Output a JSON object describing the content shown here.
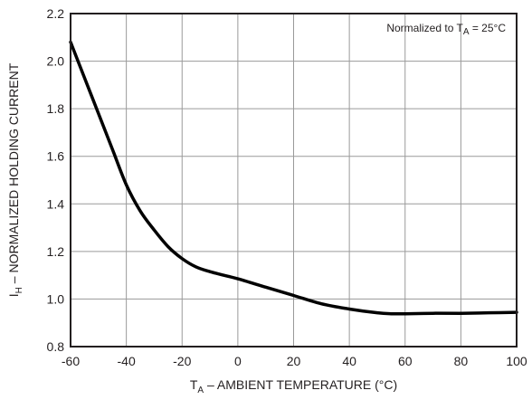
{
  "chart_data": {
    "type": "line",
    "xlabel": {
      "main": "T",
      "sub": "A",
      "rest": " – AMBIENT TEMPERATURE (°C)"
    },
    "ylabel": {
      "main": "I",
      "sub": "H",
      "rest": " – NORMALIZED HOLDING CURRENT"
    },
    "annotation": {
      "prefix": "Normalized to T",
      "sub": "A",
      "suffix": " = 25°C"
    },
    "xlim": [
      -60,
      100
    ],
    "ylim": [
      0.8,
      2.2
    ],
    "x_ticks": [
      "-60",
      "-40",
      "-20",
      "0",
      "20",
      "40",
      "60",
      "80",
      "100"
    ],
    "y_ticks": [
      "0.8",
      "1.0",
      "1.2",
      "1.4",
      "1.6",
      "1.8",
      "2.0",
      "2.2"
    ],
    "grid": true,
    "series": [
      {
        "x": [
          -60,
          -55,
          -50,
          -45,
          -40,
          -35,
          -30,
          -25,
          -20,
          -15,
          -10,
          -5,
          0,
          10,
          20,
          30,
          40,
          50,
          55,
          60,
          70,
          80,
          90,
          100
        ],
        "y": [
          2.08,
          1.93,
          1.78,
          1.63,
          1.48,
          1.37,
          1.29,
          1.22,
          1.17,
          1.135,
          1.115,
          1.1,
          1.085,
          1.05,
          1.015,
          0.98,
          0.958,
          0.942,
          0.938,
          0.938,
          0.94,
          0.94,
          0.942,
          0.944
        ]
      }
    ],
    "colors": {
      "line": "#000000",
      "grid": "#9a9a9a",
      "axes": "#231f20",
      "text": "#231f20"
    }
  }
}
